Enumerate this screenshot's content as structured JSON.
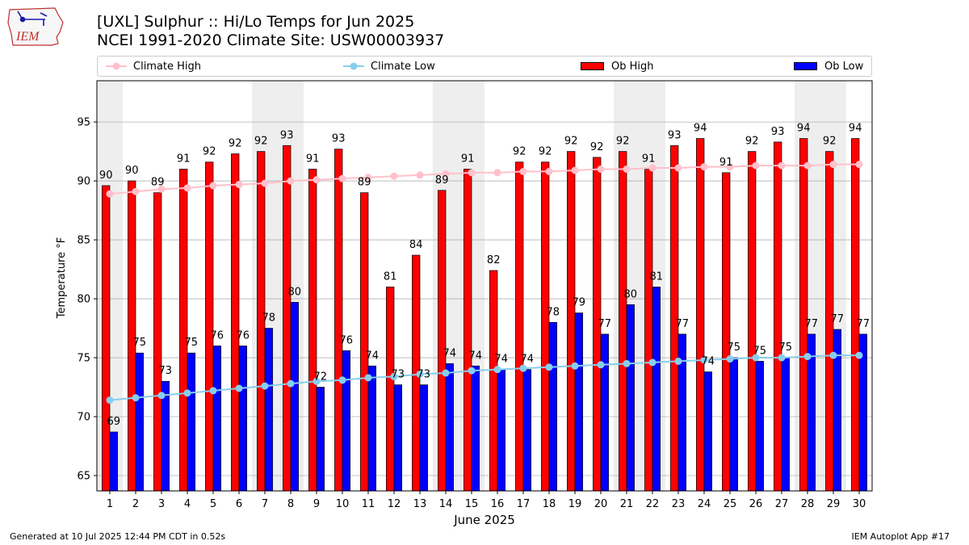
{
  "header": {
    "title_line1": "[UXL] Sulphur :: Hi/Lo Temps for Jun 2025",
    "title_line2": "NCEI 1991-2020 Climate Site: USW00003937",
    "logo_text": "IEM"
  },
  "footer": {
    "generated": "Generated at 10 Jul 2025 12:44 PM CDT in 0.52s",
    "app": "IEM Autoplot App #17"
  },
  "legend": {
    "climate_high": "Climate High",
    "climate_low": "Climate Low",
    "ob_high": "Ob High",
    "ob_low": "Ob Low"
  },
  "colors": {
    "ob_high": "#ff0000",
    "ob_low": "#0000ff",
    "climate_high": "#ffc0cb",
    "climate_low": "#87ceeb",
    "weekend_band": "#eeeeee",
    "grid": "#b0b0b0"
  },
  "chart_data": {
    "type": "bar",
    "xlabel": "June 2025",
    "ylabel": "Temperature °F",
    "ylim": [
      63.7,
      98.5
    ],
    "yticks": [
      65,
      70,
      75,
      80,
      85,
      90,
      95
    ],
    "grid": "horizontal",
    "legend_position": "top",
    "categories": [
      1,
      2,
      3,
      4,
      5,
      6,
      7,
      8,
      9,
      10,
      11,
      12,
      13,
      14,
      15,
      16,
      17,
      18,
      19,
      20,
      21,
      22,
      23,
      24,
      25,
      26,
      27,
      28,
      29,
      30
    ],
    "weekend_days": [
      1,
      7,
      8,
      14,
      15,
      21,
      22,
      28,
      29
    ],
    "series": [
      {
        "name": "Ob High",
        "kind": "bar",
        "values": [
          89.6,
          90.0,
          89.0,
          91.0,
          91.6,
          92.3,
          92.5,
          93.0,
          91.0,
          92.7,
          89.0,
          81.0,
          83.7,
          89.2,
          91.0,
          82.4,
          91.6,
          91.6,
          92.5,
          92.0,
          92.5,
          91.0,
          93.0,
          93.6,
          90.7,
          92.5,
          93.3,
          93.6,
          92.5,
          93.6
        ],
        "labels": [
          90,
          90,
          89,
          91,
          92,
          92,
          92,
          93,
          91,
          93,
          89,
          81,
          84,
          89,
          91,
          82,
          92,
          92,
          92,
          92,
          92,
          91,
          93,
          94,
          91,
          92,
          93,
          94,
          92,
          94
        ]
      },
      {
        "name": "Ob Low",
        "kind": "bar",
        "values": [
          68.7,
          75.4,
          73.0,
          75.4,
          76.0,
          76.0,
          77.5,
          79.7,
          72.5,
          75.6,
          74.3,
          72.7,
          72.7,
          74.5,
          74.3,
          74.0,
          74.0,
          78.0,
          78.8,
          77.0,
          79.5,
          81.0,
          77.0,
          73.8,
          75.0,
          74.7,
          75.0,
          77.0,
          77.4,
          77.0
        ],
        "labels": [
          69,
          75,
          73,
          75,
          76,
          76,
          78,
          80,
          72,
          76,
          74,
          73,
          73,
          74,
          74,
          74,
          74,
          78,
          79,
          77,
          80,
          81,
          77,
          74,
          75,
          75,
          75,
          77,
          77,
          77
        ]
      },
      {
        "name": "Climate High",
        "kind": "line",
        "values": [
          88.9,
          89.1,
          89.3,
          89.4,
          89.6,
          89.7,
          89.8,
          90.0,
          90.1,
          90.2,
          90.3,
          90.4,
          90.5,
          90.6,
          90.7,
          90.7,
          90.8,
          90.8,
          90.9,
          91.0,
          91.0,
          91.1,
          91.1,
          91.2,
          91.2,
          91.3,
          91.3,
          91.3,
          91.4,
          91.4
        ]
      },
      {
        "name": "Climate Low",
        "kind": "line",
        "values": [
          71.4,
          71.6,
          71.8,
          72.0,
          72.2,
          72.4,
          72.6,
          72.8,
          73.0,
          73.1,
          73.3,
          73.4,
          73.6,
          73.7,
          73.9,
          74.0,
          74.1,
          74.2,
          74.3,
          74.4,
          74.5,
          74.6,
          74.7,
          74.8,
          74.9,
          75.0,
          75.0,
          75.1,
          75.2,
          75.2
        ]
      }
    ]
  }
}
